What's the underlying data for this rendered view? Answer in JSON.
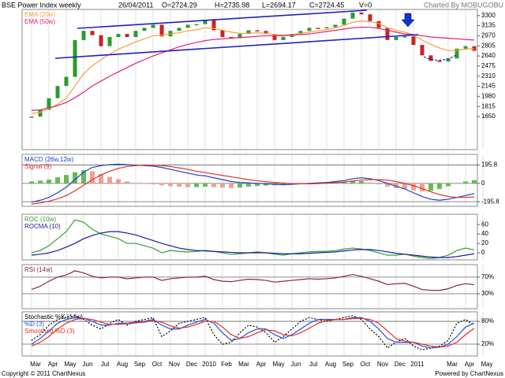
{
  "header": {
    "date": "26/04/2011",
    "open": "O=2724.29",
    "high": "H=2735.98",
    "low": "L=2694.17",
    "close": "C=2724.45",
    "volume": "V=0",
    "credit": "Charted By MOBUGOBU"
  },
  "footer": {
    "copyright": "Copyright © 2011 ChartNexus",
    "powered": "Powered by ChartNexus"
  },
  "chart_data": [
    {
      "type": "candlestick",
      "title": "BSE Power Index weekly",
      "up_color": "#2a9d2a",
      "down_color": "#cc2222",
      "values": [
        1650,
        1760,
        1950,
        2150,
        2300,
        2900,
        3050,
        2980,
        2800,
        2950,
        3000,
        2950,
        3050,
        3100,
        3150,
        2960,
        3050,
        3100,
        3150,
        3160,
        3220,
        3060,
        2950,
        2930,
        3000,
        3060,
        3050,
        3000,
        2900,
        2950,
        3000,
        3050,
        3100,
        3090,
        3110,
        3150,
        3250,
        3350,
        3320,
        3210,
        3100,
        2900,
        2950,
        2960,
        2820,
        2650,
        2560,
        2550,
        2600,
        2760,
        2800,
        2724.45,
        null,
        null
      ],
      "series": [
        {
          "name": "EMA (20w)",
          "color": "#f0a040",
          "values": [
            1700,
            1720,
            1780,
            1850,
            1950,
            2150,
            2350,
            2480,
            2580,
            2670,
            2750,
            2810,
            2870,
            2920,
            2970,
            2980,
            3000,
            3020,
            3050,
            3070,
            3100,
            3090,
            3060,
            3030,
            3010,
            3010,
            3020,
            3010,
            2990,
            2980,
            2990,
            3010,
            3030,
            3050,
            3070,
            3100,
            3140,
            3190,
            3210,
            3200,
            3170,
            3100,
            3060,
            3030,
            2980,
            2900,
            2830,
            2770,
            2730,
            2730,
            2750,
            2760,
            null,
            null
          ]
        },
        {
          "name": "EMA (50w)",
          "color": "#e0207a",
          "values": [
            1750,
            1760,
            1790,
            1830,
            1880,
            1960,
            2050,
            2150,
            2230,
            2310,
            2380,
            2450,
            2520,
            2580,
            2640,
            2690,
            2740,
            2790,
            2830,
            2860,
            2890,
            2910,
            2920,
            2930,
            2940,
            2950,
            2960,
            2970,
            2970,
            2970,
            2980,
            2990,
            3000,
            3020,
            3040,
            3060,
            3080,
            3100,
            3110,
            3110,
            3090,
            3060,
            3030,
            3000,
            2990,
            2970,
            2950,
            2940,
            2930,
            2920,
            2910,
            2900,
            null,
            null
          ]
        }
      ],
      "ylim": [
        1110,
        3400
      ],
      "yticks": [
        1650,
        1815,
        1980,
        2145,
        2310,
        2475,
        2640,
        2805,
        2970,
        3135,
        3300
      ],
      "grid": false
    },
    {
      "type": "macd",
      "histogram": {
        "up_color": "#66bb55",
        "down_color": "#f0a090",
        "values": [
          20,
          30,
          40,
          65,
          90,
          120,
          140,
          130,
          100,
          70,
          45,
          20,
          5,
          -5,
          -10,
          -20,
          -30,
          -35,
          -40,
          -40,
          -35,
          -40,
          -45,
          -50,
          -45,
          -35,
          -28,
          -23,
          -20,
          -18,
          -8,
          -1,
          4,
          7,
          8,
          12,
          15,
          25,
          25,
          10,
          -10,
          -35,
          -50,
          -60,
          -75,
          -85,
          -80,
          -60,
          -30,
          0,
          20,
          35,
          null,
          null
        ]
      },
      "series": [
        {
          "name": "MACD (26w,12w)",
          "color": "#2040c0",
          "values": [
            -200,
            -180,
            -150,
            -100,
            -40,
            40,
            120,
            170,
            190,
            200,
            205,
            200,
            195,
            190,
            185,
            170,
            150,
            130,
            110,
            90,
            80,
            60,
            40,
            20,
            10,
            5,
            0,
            -5,
            -10,
            -15,
            -10,
            -5,
            0,
            5,
            10,
            20,
            30,
            50,
            60,
            50,
            30,
            0,
            -30,
            -60,
            -100,
            -140,
            -170,
            -180,
            -170,
            -150,
            -130,
            -110,
            null,
            null
          ]
        },
        {
          "name": "Signal (9)",
          "color": "#e03030",
          "values": [
            -220,
            -210,
            -190,
            -165,
            -130,
            -80,
            -20,
            40,
            90,
            130,
            160,
            180,
            190,
            195,
            195,
            190,
            180,
            165,
            150,
            130,
            115,
            100,
            85,
            70,
            55,
            40,
            28,
            18,
            10,
            3,
            -2,
            -4,
            -4,
            -2,
            2,
            8,
            15,
            25,
            35,
            40,
            40,
            35,
            20,
            0,
            -25,
            -55,
            -90,
            -120,
            -140,
            -150,
            -150,
            -145,
            null,
            null
          ]
        }
      ],
      "ylim": [
        -245,
        310
      ],
      "yticks": [
        -195.8,
        0,
        195.8
      ],
      "grid": true
    },
    {
      "type": "line",
      "series": [
        {
          "name": "ROC (10w)",
          "color": "#30a030",
          "values": [
            0,
            5,
            15,
            30,
            45,
            70,
            65,
            50,
            40,
            35,
            30,
            20,
            20,
            15,
            10,
            0,
            5,
            3,
            2,
            3,
            5,
            3,
            0,
            -3,
            -2,
            0,
            2,
            0,
            -3,
            -5,
            -2,
            0,
            2,
            3,
            3,
            5,
            8,
            10,
            8,
            5,
            0,
            -5,
            -5,
            -3,
            -7,
            -10,
            -12,
            -10,
            -5,
            5,
            10,
            6,
            null,
            null
          ]
        },
        {
          "name": "ROCMA (10)",
          "color": "#1a1a9a",
          "values": [
            -5,
            -3,
            0,
            5,
            12,
            20,
            30,
            37,
            42,
            45,
            45,
            42,
            38,
            32,
            26,
            20,
            15,
            10,
            7,
            5,
            4,
            3,
            2,
            1,
            0,
            0,
            0,
            0,
            -1,
            -2,
            -2,
            -2,
            -1,
            0,
            1,
            2,
            4,
            6,
            7,
            7,
            5,
            2,
            -1,
            -3,
            -5,
            -7,
            -9,
            -10,
            -10,
            -8,
            -5,
            -2,
            null,
            null
          ]
        }
      ],
      "ylim": [
        -15,
        82
      ],
      "yticks": [
        0,
        20,
        40,
        60
      ],
      "grid": false
    },
    {
      "type": "line",
      "series": [
        {
          "name": "RSI (14w)",
          "color": "#8b2252",
          "values": [
            40,
            48,
            60,
            70,
            75,
            85,
            80,
            72,
            68,
            70,
            70,
            66,
            68,
            70,
            70,
            62,
            66,
            68,
            70,
            70,
            72,
            64,
            60,
            59,
            62,
            65,
            64,
            62,
            58,
            60,
            62,
            64,
            66,
            65,
            66,
            68,
            72,
            76,
            72,
            66,
            60,
            52,
            54,
            55,
            48,
            40,
            38,
            38,
            42,
            50,
            54,
            52,
            null,
            null
          ]
        }
      ],
      "ylim": [
        -6,
        100
      ],
      "yticks": [
        {
          "value": 30,
          "label": "30%"
        },
        {
          "value": 70,
          "label": "70%"
        }
      ],
      "grid": true
    },
    {
      "type": "line",
      "series": [
        {
          "name": "Stochastic %K (14w)",
          "color": "#000000",
          "style": "dotted",
          "values": [
            30,
            45,
            70,
            85,
            90,
            95,
            85,
            70,
            60,
            75,
            85,
            70,
            80,
            85,
            90,
            40,
            55,
            75,
            80,
            85,
            90,
            45,
            20,
            25,
            50,
            70,
            65,
            50,
            25,
            40,
            60,
            80,
            90,
            85,
            80,
            85,
            90,
            95,
            85,
            60,
            40,
            10,
            25,
            35,
            15,
            5,
            10,
            15,
            30,
            75,
            85,
            70,
            null,
            null
          ]
        },
        {
          "name": "%D (3)",
          "color": "#2050e0",
          "values": [
            20,
            35,
            55,
            75,
            85,
            90,
            88,
            80,
            70,
            70,
            75,
            75,
            78,
            80,
            85,
            70,
            60,
            60,
            70,
            78,
            85,
            75,
            50,
            30,
            35,
            50,
            60,
            60,
            45,
            35,
            45,
            60,
            75,
            85,
            85,
            85,
            85,
            90,
            90,
            80,
            60,
            35,
            25,
            25,
            25,
            15,
            10,
            12,
            20,
            40,
            65,
            75,
            null,
            null
          ]
        },
        {
          "name": "Smoothed %D (3)",
          "color": "#e03020",
          "values": [
            15,
            25,
            40,
            60,
            75,
            85,
            88,
            85,
            78,
            72,
            72,
            74,
            76,
            78,
            82,
            78,
            68,
            62,
            65,
            72,
            80,
            80,
            65,
            45,
            35,
            40,
            50,
            58,
            55,
            45,
            42,
            50,
            62,
            75,
            82,
            85,
            85,
            87,
            88,
            85,
            75,
            55,
            35,
            28,
            25,
            20,
            15,
            12,
            15,
            25,
            45,
            62,
            null,
            null
          ]
        }
      ],
      "ylim": [
        -11,
        105
      ],
      "yticks": [
        {
          "value": 20,
          "label": "20%"
        },
        {
          "value": 80,
          "label": "80%"
        }
      ],
      "grid": true,
      "categories": [
        "Mar",
        null,
        "Apr",
        null,
        "May",
        null,
        "Jun",
        null,
        "Jul",
        null,
        "Aug",
        null,
        "Sep",
        null,
        "Oct",
        null,
        "Nov",
        null,
        "Dec",
        null,
        "2010",
        null,
        "Feb",
        null,
        "Mar",
        null,
        "Apr",
        null,
        "May",
        null,
        "Jun",
        null,
        "Jul",
        null,
        "Aug",
        null,
        "Sep",
        null,
        "Oct",
        null,
        "Nov",
        null,
        "Dec",
        null,
        "2011",
        null,
        null,
        null,
        "Mar",
        null,
        "Apr",
        null,
        "May",
        null
      ]
    }
  ]
}
